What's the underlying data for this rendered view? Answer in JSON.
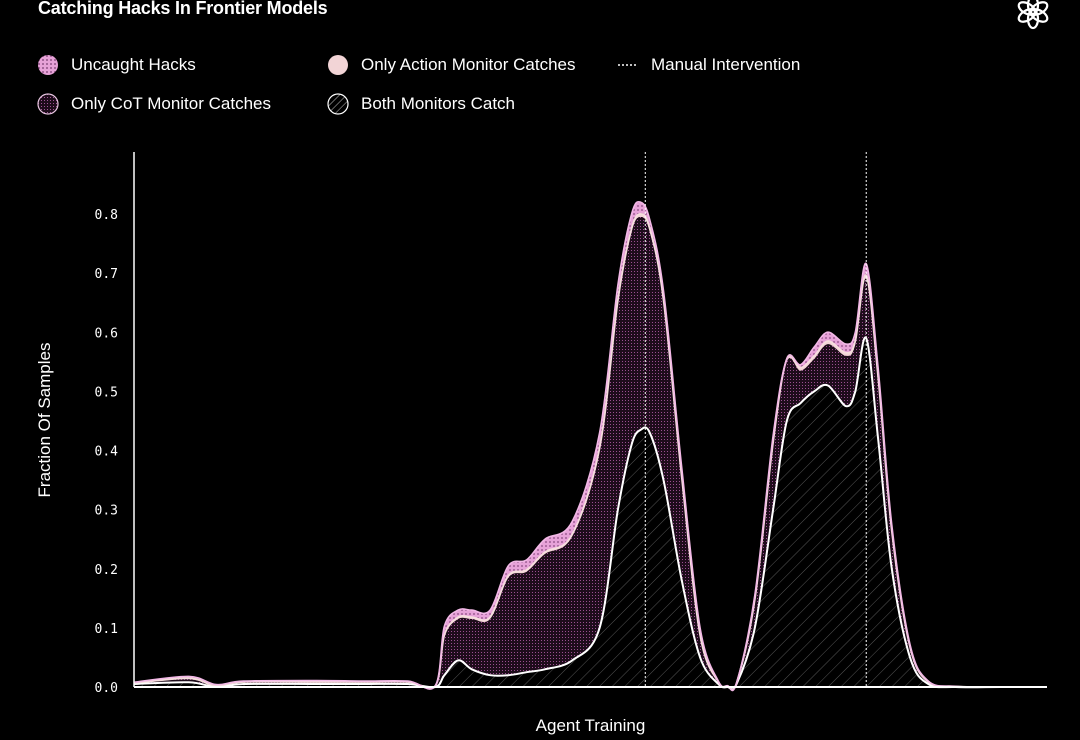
{
  "title": "Catching Hacks In Frontier Models",
  "logo_icon": "openai-logo-icon",
  "legend": [
    {
      "key": "uncaught",
      "label": "Uncaught Hacks",
      "icon": "dotted-pink-swatch-icon",
      "color": "#e7a2d8"
    },
    {
      "key": "action",
      "label": "Only Action Monitor Catches",
      "icon": "solid-light-pink-swatch-icon",
      "color": "#f2d4d6"
    },
    {
      "key": "manual",
      "label": "Manual Intervention",
      "icon": "dotted-line-icon",
      "color": "#ffffff"
    },
    {
      "key": "cot",
      "label": "Only CoT Monitor Catches",
      "icon": "dot-grid-swatch-icon",
      "color": "#3a1a34"
    },
    {
      "key": "both",
      "label": "Both Monitors Catch",
      "icon": "hatched-swatch-icon",
      "color": "#8a8a8a"
    }
  ],
  "chart_data": {
    "type": "area",
    "title": "Catching Hacks In Frontier Models",
    "xlabel": "Agent Training",
    "ylabel": "Fraction Of Samples",
    "xlim": [
      0,
      1
    ],
    "ylim": [
      0,
      0.9
    ],
    "yticks": [
      0.0,
      0.1,
      0.2,
      0.3,
      0.4,
      0.5,
      0.6,
      0.7,
      0.8
    ],
    "ytick_labels": [
      "0.0",
      "0.1",
      "0.2",
      "0.3",
      "0.4",
      "0.5",
      "0.6",
      "0.7",
      "0.8"
    ],
    "manual_interventions_x": [
      0.56,
      0.802
    ],
    "x": [
      0.0,
      0.06,
      0.09,
      0.12,
      0.2,
      0.25,
      0.3,
      0.33,
      0.34,
      0.355,
      0.37,
      0.39,
      0.41,
      0.43,
      0.45,
      0.48,
      0.51,
      0.53,
      0.545,
      0.555,
      0.565,
      0.58,
      0.6,
      0.62,
      0.64,
      0.65,
      0.66,
      0.68,
      0.7,
      0.715,
      0.73,
      0.745,
      0.76,
      0.78,
      0.79,
      0.802,
      0.815,
      0.83,
      0.85,
      0.87,
      0.9,
      0.95,
      1.0
    ],
    "series": [
      {
        "name": "Both Monitors Catch",
        "values": [
          0.005,
          0.008,
          0.0,
          0.005,
          0.005,
          0.005,
          0.005,
          0.0,
          0.02,
          0.045,
          0.03,
          0.02,
          0.02,
          0.025,
          0.03,
          0.045,
          0.1,
          0.3,
          0.41,
          0.435,
          0.43,
          0.35,
          0.18,
          0.05,
          0.005,
          0.0,
          0.005,
          0.1,
          0.3,
          0.45,
          0.48,
          0.5,
          0.51,
          0.475,
          0.5,
          0.59,
          0.42,
          0.2,
          0.05,
          0.005,
          0.0,
          0.0,
          0.0
        ]
      },
      {
        "name": "Only CoT Monitor Catches",
        "values": [
          0.0,
          0.005,
          0.0,
          0.002,
          0.002,
          0.002,
          0.002,
          0.0,
          0.065,
          0.07,
          0.085,
          0.095,
          0.165,
          0.17,
          0.195,
          0.21,
          0.3,
          0.35,
          0.36,
          0.36,
          0.34,
          0.3,
          0.17,
          0.035,
          0.002,
          0.0,
          0.0,
          0.045,
          0.11,
          0.1,
          0.055,
          0.055,
          0.07,
          0.085,
          0.08,
          0.1,
          0.1,
          0.06,
          0.015,
          0.002,
          0.0,
          0.0,
          0.0
        ]
      },
      {
        "name": "Only Action Monitor Catches",
        "values": [
          0.002,
          0.002,
          0.002,
          0.002,
          0.002,
          0.002,
          0.002,
          0.002,
          0.003,
          0.003,
          0.003,
          0.003,
          0.003,
          0.003,
          0.003,
          0.003,
          0.004,
          0.004,
          0.005,
          0.005,
          0.005,
          0.005,
          0.004,
          0.003,
          0.002,
          0.002,
          0.002,
          0.003,
          0.004,
          0.005,
          0.005,
          0.005,
          0.005,
          0.005,
          0.005,
          0.006,
          0.005,
          0.004,
          0.003,
          0.002,
          0.001,
          0.0,
          0.0
        ]
      },
      {
        "name": "Uncaught Hacks",
        "values": [
          0.001,
          0.003,
          0.002,
          0.001,
          0.002,
          0.001,
          0.001,
          0.0,
          0.015,
          0.012,
          0.012,
          0.012,
          0.017,
          0.017,
          0.022,
          0.022,
          0.026,
          0.026,
          0.025,
          0.02,
          0.015,
          0.015,
          0.016,
          0.012,
          0.001,
          0.0,
          0.0,
          0.007,
          0.011,
          0.0,
          0.005,
          0.015,
          0.015,
          0.015,
          0.015,
          0.02,
          0.015,
          0.01,
          0.004,
          0.001,
          0.0,
          0.0,
          0.0
        ]
      }
    ]
  }
}
